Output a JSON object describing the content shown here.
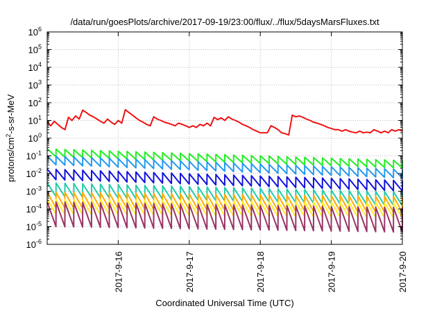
{
  "chart_data": {
    "type": "line",
    "title": "/data/run/goesPlots/archive/2017-09-19/23:00/flux/../flux/5daysMarsFluxes.txt",
    "xlabel": "Coordinated Universal Time (UTC)",
    "ylabel_main": "protons/cm",
    "ylabel_sup": "2",
    "ylabel_tail": "-s-sr-MeV",
    "y_scale": "log",
    "ylim_exponents": [
      -6,
      6
    ],
    "y_tick_base": "10",
    "y_tick_exponents": [
      "-6",
      "-5",
      "-4",
      "-3",
      "-2",
      "-1",
      "0",
      "1",
      "2",
      "3",
      "4",
      "5",
      "6"
    ],
    "xlim_days": [
      0,
      5
    ],
    "x_ticks": [
      {
        "label": "2017-9-16",
        "day": 1
      },
      {
        "label": "2017-9-17",
        "day": 2
      },
      {
        "label": "2017-9-18",
        "day": 3
      },
      {
        "label": "2017-9-19",
        "day": 4
      },
      {
        "label": "2017-9-20",
        "day": 5
      }
    ],
    "grid": true,
    "legend": "none",
    "series": [
      {
        "color": "#ee1111",
        "x": [
          0,
          0.05,
          0.1,
          0.15,
          0.2,
          0.25,
          0.3,
          0.35,
          0.4,
          0.45,
          0.5,
          0.55,
          0.6,
          0.65,
          0.7,
          0.75,
          0.8,
          0.85,
          0.9,
          0.95,
          1.0,
          1.05,
          1.1,
          1.15,
          1.2,
          1.25,
          1.3,
          1.35,
          1.4,
          1.45,
          1.5,
          1.55,
          1.6,
          1.65,
          1.7,
          1.75,
          1.8,
          1.85,
          1.9,
          1.95,
          2.0,
          2.05,
          2.1,
          2.15,
          2.2,
          2.25,
          2.3,
          2.35,
          2.4,
          2.45,
          2.5,
          2.55,
          2.6,
          2.65,
          2.7,
          2.75,
          2.8,
          2.85,
          2.9,
          2.95,
          3.0,
          3.05,
          3.1,
          3.15,
          3.2,
          3.25,
          3.3,
          3.35,
          3.4,
          3.45,
          3.5,
          3.55,
          3.6,
          3.65,
          3.7,
          3.75,
          3.8,
          3.85,
          3.9,
          3.95,
          4.0,
          4.05,
          4.1,
          4.15,
          4.2,
          4.25,
          4.3,
          4.35,
          4.4,
          4.45,
          4.5,
          4.55,
          4.6,
          4.65,
          4.7,
          4.75,
          4.8,
          4.85,
          4.9,
          4.95,
          5.0
        ],
        "values": [
          8,
          5,
          9,
          6,
          4,
          3,
          15,
          10,
          18,
          12,
          38,
          28,
          20,
          16,
          12,
          9,
          7,
          12,
          8,
          6,
          10,
          7,
          40,
          28,
          20,
          14,
          10,
          8,
          6,
          5,
          16,
          12,
          10,
          8,
          7,
          6,
          5,
          7,
          6,
          5,
          4,
          5,
          4,
          6,
          5,
          7,
          5,
          15,
          11,
          14,
          10,
          16,
          12,
          10,
          8,
          6,
          5,
          4,
          3,
          2.5,
          2,
          2,
          2,
          5,
          4,
          3,
          2,
          1.8,
          1.5,
          20,
          16,
          18,
          15,
          12,
          10,
          8,
          7,
          6,
          5,
          4,
          3.5,
          3,
          3,
          2.5,
          3,
          2.5,
          2.2,
          2,
          2.5,
          2,
          2.2,
          2,
          3,
          2.5,
          2,
          2.5,
          2,
          3,
          2.5,
          3,
          2.5
        ]
      },
      {
        "color": "#22ee22",
        "sawtooth": {
          "peaks_per_day": 8,
          "start": 0.25,
          "end": 0.055,
          "drop": 2.8
        }
      },
      {
        "color": "#2299ee",
        "sawtooth": {
          "peaks_per_day": 8,
          "start": 0.1,
          "end": 0.017,
          "drop": 3.2
        }
      },
      {
        "color": "#1111dd",
        "sawtooth": {
          "peaks_per_day": 8,
          "start": 0.018,
          "end": 0.004,
          "drop": 4
        }
      },
      {
        "color": "#22ccaa",
        "sawtooth": {
          "peaks_per_day": 8,
          "start": 0.003,
          "end": 0.0009,
          "drop": 6
        }
      },
      {
        "color": "#ffaa00",
        "sawtooth": {
          "peaks_per_day": 8,
          "start": 0.0009,
          "end": 0.0005,
          "drop": 8
        }
      },
      {
        "color": "#ffee22",
        "sawtooth": {
          "peaks_per_day": 8,
          "start": 0.00035,
          "end": 0.00022,
          "drop": 7
        }
      },
      {
        "color": "#993366",
        "sawtooth": {
          "peaks_per_day": 8,
          "start": 0.00025,
          "end": 0.00012,
          "drop": 25
        }
      }
    ]
  }
}
